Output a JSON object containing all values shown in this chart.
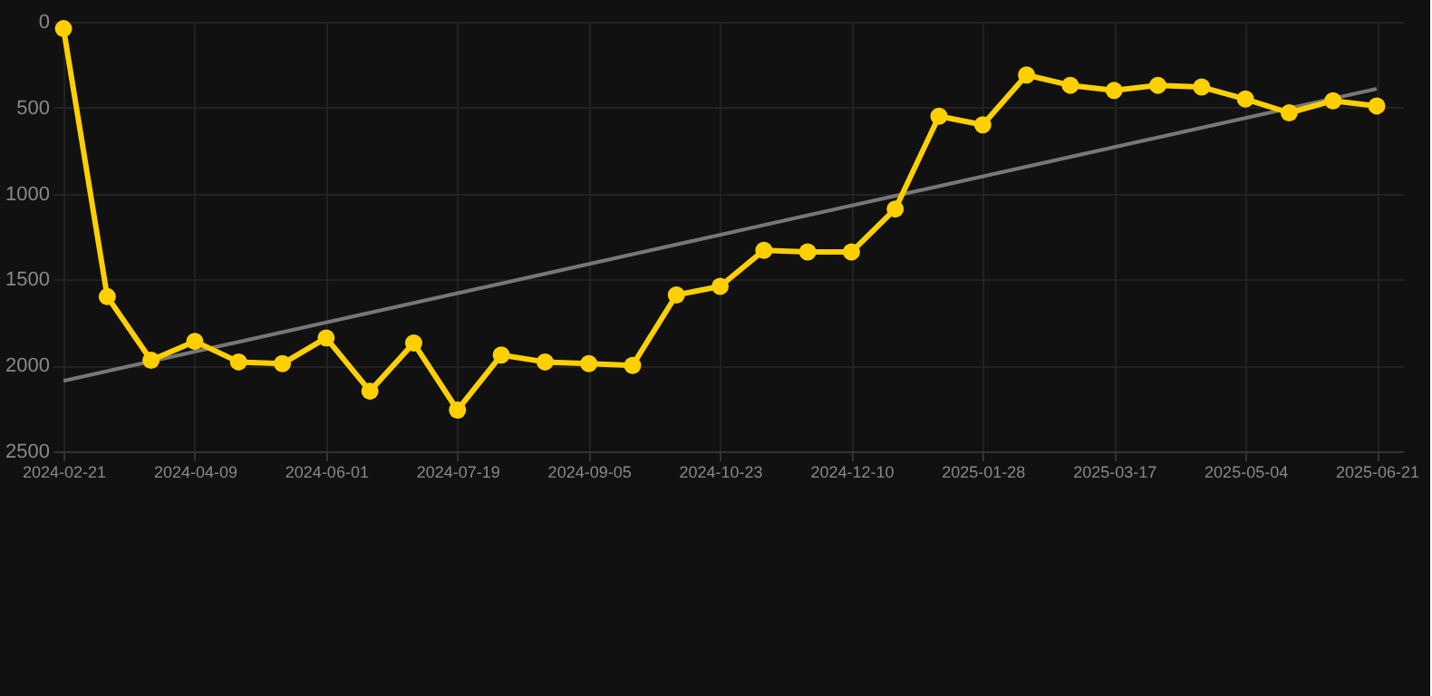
{
  "chart_data": {
    "type": "line",
    "categories": [
      "2024-02-21",
      null,
      null,
      "2024-04-09",
      null,
      null,
      "2024-06-01",
      null,
      null,
      "2024-07-19",
      null,
      null,
      "2024-09-05",
      null,
      null,
      "2024-10-23",
      null,
      null,
      "2024-12-10",
      null,
      null,
      "2025-01-28",
      null,
      null,
      "2025-03-17",
      null,
      null,
      "2025-05-04",
      null,
      null,
      "2025-06-21"
    ],
    "series": [
      {
        "color": "#ffd000",
        "marker": "circle",
        "values": [
          40,
          1600,
          1970,
          1860,
          1980,
          1990,
          1840,
          2150,
          1870,
          2260,
          1940,
          1980,
          1990,
          2000,
          1590,
          1540,
          1330,
          1340,
          1340,
          1090,
          550,
          600,
          310,
          370,
          400,
          370,
          380,
          450,
          530,
          460,
          490
        ]
      },
      {
        "type": "line",
        "color": "#777777",
        "marker": "none",
        "values": [
          2090,
          null,
          null,
          null,
          null,
          null,
          null,
          null,
          null,
          null,
          null,
          null,
          null,
          null,
          null,
          null,
          null,
          null,
          null,
          null,
          null,
          null,
          null,
          null,
          null,
          null,
          null,
          null,
          null,
          null,
          390
        ]
      }
    ],
    "ylim": [
      2500,
      0
    ],
    "yticks": [
      0,
      500,
      1000,
      1500,
      2000,
      2500
    ],
    "grid": true
  }
}
